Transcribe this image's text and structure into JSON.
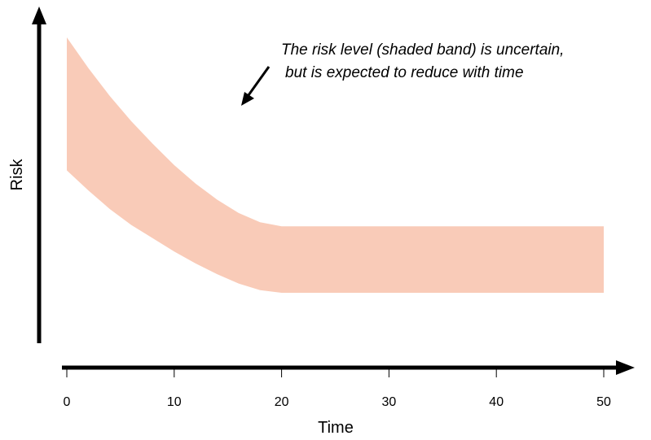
{
  "chart_data": {
    "type": "area",
    "xlabel": "Time",
    "ylabel": "Risk",
    "x_ticks": [
      0,
      10,
      20,
      30,
      40,
      50
    ],
    "xlim": [
      0,
      50
    ],
    "grid": false,
    "y_ticks_shown": false,
    "band": {
      "x": [
        0,
        2,
        4,
        6,
        8,
        10,
        12,
        14,
        16,
        18,
        20,
        25,
        30,
        35,
        40,
        45,
        50
      ],
      "upper": [
        100,
        88.5,
        78,
        68.5,
        60,
        52,
        45,
        39,
        34,
        30.5,
        29,
        29,
        29,
        29,
        29,
        29,
        29
      ],
      "lower": [
        50,
        42.5,
        35.5,
        29.5,
        24.5,
        19.5,
        15,
        11,
        7.5,
        5,
        4,
        4,
        4,
        4,
        4,
        4,
        4
      ],
      "color": "#f9cbb8"
    },
    "annotation": {
      "lines": [
        "The risk level (shaded band) is uncertain,",
        "but is expected to reduce with time"
      ]
    }
  }
}
